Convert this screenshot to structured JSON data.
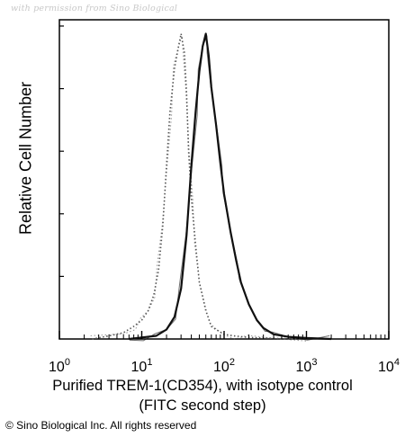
{
  "watermark": "with permission from Sino Biological",
  "copyright": "© Sino Biological Inc. All rights reserved",
  "chart_data": {
    "type": "histogram",
    "xscale": "log",
    "xlim": [
      1,
      10000
    ],
    "ylim": [
      0,
      1
    ],
    "xlabel_line1": "Purified TREM-1(CD354), with isotype control",
    "xlabel_line2": "(FITC second step)",
    "ylabel": "Relative Cell Number",
    "x_ticks": [
      {
        "base": "10",
        "exp": "0",
        "value": 1
      },
      {
        "base": "10",
        "exp": "1",
        "value": 10
      },
      {
        "base": "10",
        "exp": "2",
        "value": 100
      },
      {
        "base": "10",
        "exp": "3",
        "value": 1000
      },
      {
        "base": "10",
        "exp": "4",
        "value": 10000
      }
    ],
    "series": [
      {
        "style": "dotted",
        "x": [
          2.5,
          4,
          6,
          8,
          10,
          12,
          14,
          16,
          18,
          20,
          22,
          25,
          28,
          30,
          33,
          35,
          37,
          40,
          45,
          50,
          60,
          70,
          80,
          100,
          130,
          200,
          400,
          1000
        ],
        "y": [
          0.0,
          0.01,
          0.02,
          0.04,
          0.06,
          0.09,
          0.14,
          0.22,
          0.36,
          0.55,
          0.72,
          0.86,
          0.93,
          0.97,
          0.91,
          0.78,
          0.6,
          0.45,
          0.3,
          0.18,
          0.09,
          0.04,
          0.03,
          0.015,
          0.01,
          0.005,
          0.002,
          0.0
        ]
      },
      {
        "style": "solid",
        "x": [
          7,
          10,
          15,
          20,
          25,
          30,
          35,
          40,
          45,
          50,
          55,
          60,
          65,
          70,
          80,
          90,
          100,
          120,
          140,
          160,
          200,
          250,
          300,
          400,
          600,
          1000,
          2000
        ],
        "y": [
          0.0,
          0.005,
          0.01,
          0.03,
          0.07,
          0.16,
          0.33,
          0.55,
          0.72,
          0.85,
          0.93,
          0.97,
          0.9,
          0.8,
          0.68,
          0.56,
          0.46,
          0.34,
          0.25,
          0.18,
          0.11,
          0.06,
          0.035,
          0.015,
          0.007,
          0.003,
          0.0
        ]
      }
    ]
  }
}
